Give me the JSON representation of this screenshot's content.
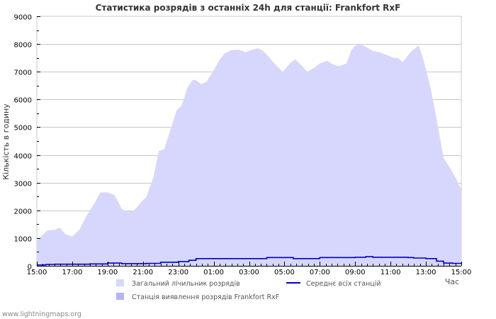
{
  "page": {
    "footer": "www.lightningmaps.org"
  },
  "colors": {
    "area_fill": "#d7d7fd",
    "station_fill": "#b4b4f5",
    "avg_line": "#0000cc",
    "grid": "#c8c8c8",
    "background": "#ffffff"
  },
  "chart_data": {
    "type": "area",
    "title": "Статистика розрядів з останніх 24h для станції: Frankfort RxF",
    "xlabel": "Час",
    "ylabel": "Кількість в годину",
    "ylim": [
      0,
      9000
    ],
    "yticks": [
      0,
      1000,
      2000,
      3000,
      4000,
      5000,
      6000,
      7000,
      8000,
      9000
    ],
    "xticks": [
      "15:00",
      "17:00",
      "19:00",
      "21:00",
      "23:00",
      "01:00",
      "03:00",
      "05:00",
      "07:00",
      "09:00",
      "11:00",
      "13:00",
      "15:00"
    ],
    "grid": true,
    "legend": [
      {
        "label": "Загальний лічильник розрядів",
        "type": "area",
        "color": "#d7d7fd"
      },
      {
        "label": "Середнє всіх станцій",
        "type": "line",
        "color": "#0000cc"
      },
      {
        "label": "Станція виявлення розрядів Frankfort RxF",
        "type": "area",
        "color": "#b4b4f5"
      }
    ],
    "legend_position": "bottom",
    "series": [
      {
        "name": "Загальний лічильник розрядів",
        "x_hours": [
          0,
          0.3,
          0.6,
          1.0,
          1.3,
          1.6,
          2.0,
          2.4,
          2.8,
          3.2,
          3.6,
          4.0,
          4.4,
          4.8,
          5.1,
          5.5,
          5.9,
          6.2,
          6.6,
          6.9,
          7.2,
          7.5,
          7.9,
          8.2,
          8.5,
          8.8,
          9.0,
          9.3,
          9.6,
          9.9,
          10.3,
          10.6,
          11.0,
          11.4,
          11.8,
          12.1,
          12.5,
          12.8,
          13.1,
          13.5,
          13.9,
          14.3,
          14.6,
          15.0,
          15.3,
          15.7,
          16.0,
          16.4,
          16.8,
          17.1,
          17.5,
          17.8,
          18.0,
          18.3,
          18.6,
          19.0,
          19.4,
          19.8,
          20.2,
          20.4,
          20.7,
          21.0,
          21.2,
          21.4,
          21.6,
          21.9,
          22.3,
          22.6,
          23.0,
          23.4,
          23.7,
          24.0
        ],
        "values": [
          900,
          1100,
          1280,
          1300,
          1380,
          1150,
          1050,
          1300,
          1800,
          2200,
          2650,
          2650,
          2550,
          2050,
          1950,
          2000,
          2300,
          2500,
          3200,
          4150,
          4200,
          4800,
          5600,
          5800,
          6400,
          6700,
          6700,
          6550,
          6650,
          6950,
          7400,
          7650,
          7780,
          7800,
          7700,
          7780,
          7850,
          7750,
          7550,
          7250,
          7000,
          7300,
          7450,
          7200,
          7000,
          7150,
          7300,
          7400,
          7250,
          7200,
          7300,
          7800,
          7950,
          8000,
          7900,
          7750,
          7700,
          7600,
          7500,
          7500,
          7350,
          7600,
          7750,
          7850,
          7950,
          7350,
          6300,
          5300,
          3900,
          3500,
          3150,
          2750
        ]
      },
      {
        "name": "Середнє всіх станцій",
        "x_hours": [
          0,
          0.5,
          1.0,
          2.0,
          3.0,
          4.0,
          4.8,
          5.5,
          6.2,
          7.0,
          8.0,
          8.6,
          9.0,
          10.0,
          11.0,
          12.0,
          13.0,
          13.8,
          14.5,
          15.0,
          16.0,
          16.8,
          17.2,
          18.0,
          18.6,
          19.0,
          20.0,
          21.0,
          21.3,
          22.0,
          22.6,
          23.0,
          23.5,
          24.0
        ],
        "values": [
          30,
          50,
          60,
          60,
          70,
          100,
          80,
          80,
          90,
          130,
          150,
          200,
          260,
          260,
          260,
          260,
          300,
          300,
          260,
          260,
          300,
          300,
          300,
          310,
          330,
          310,
          310,
          300,
          280,
          260,
          170,
          100,
          90,
          80
        ]
      },
      {
        "name": "Станція виявлення розрядів Frankfort RxF",
        "x_hours": [],
        "values": []
      }
    ]
  }
}
